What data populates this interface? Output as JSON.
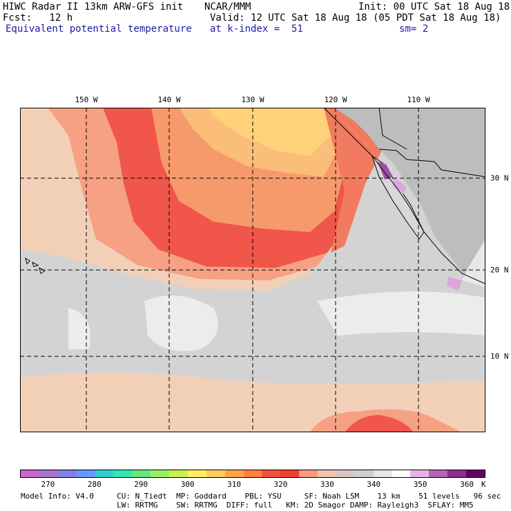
{
  "header": {
    "line1_left": "HIWC Radar II 13km ARW-GFS init",
    "line1_mid": "NCAR/MMM",
    "line1_right": "Init: 00 UTC Sat 18 Aug 18",
    "line2_left": "Fcst:   12 h",
    "line2_right": "Valid: 12 UTC Sat 18 Aug 18 (05 PDT Sat 18 Aug 18)",
    "line3_left": "Equivalent potential temperature",
    "line3_mid": "at k-index =  51",
    "line3_right": "sm= 2"
  },
  "map": {
    "lon_labels": [
      "150 W",
      "140 W",
      "130 W",
      "120 W",
      "110 W"
    ],
    "lat_labels": [
      "30 N",
      "20 N",
      "10 N"
    ],
    "colors": {
      "ocean_cool": "#d3d3d3",
      "ocean_light": "#ececec",
      "beige": "#f2d0b8",
      "salmon": "#f6a084",
      "coral": "#f27a5e",
      "red": "#f0564a",
      "orange": "#f79a6b",
      "peach": "#fbbd7a",
      "yellow": "#ffd27a",
      "land": "#bdbdbd",
      "land_dark": "#a8a8a8",
      "purple": "#9b4fa6",
      "lavender": "#d9a6de"
    }
  },
  "colorbar": {
    "ticks": [
      "270",
      "280",
      "290",
      "300",
      "310",
      "320",
      "330",
      "340",
      "350",
      "360"
    ],
    "unit": "K",
    "colors": [
      "#cc66cc",
      "#a673cc",
      "#8080e6",
      "#6699ff",
      "#33cccc",
      "#33e6b3",
      "#66e680",
      "#99ee66",
      "#ccee55",
      "#ffee66",
      "#ffcc66",
      "#ffa64d",
      "#ff8040",
      "#f25040",
      "#f24030",
      "#f79a80",
      "#f2c4b0",
      "#d8c6c0",
      "#cfcfcf",
      "#e6e6e6",
      "#ffffff",
      "#e6b3e6",
      "#b366b3",
      "#8c2e8c",
      "#660066"
    ]
  },
  "info": {
    "line1": "Model Info: V4.0     CU: N_Tiedt  MP: Goddard    PBL: YSU     SF: Noah LSM    13 km    51 levels   96 sec",
    "line2": "                     LW: RRTMG    SW: RRTMG  DIFF: full   KM: 2D Smagor DAMP: Rayleigh3  SFLAY: MM5"
  }
}
